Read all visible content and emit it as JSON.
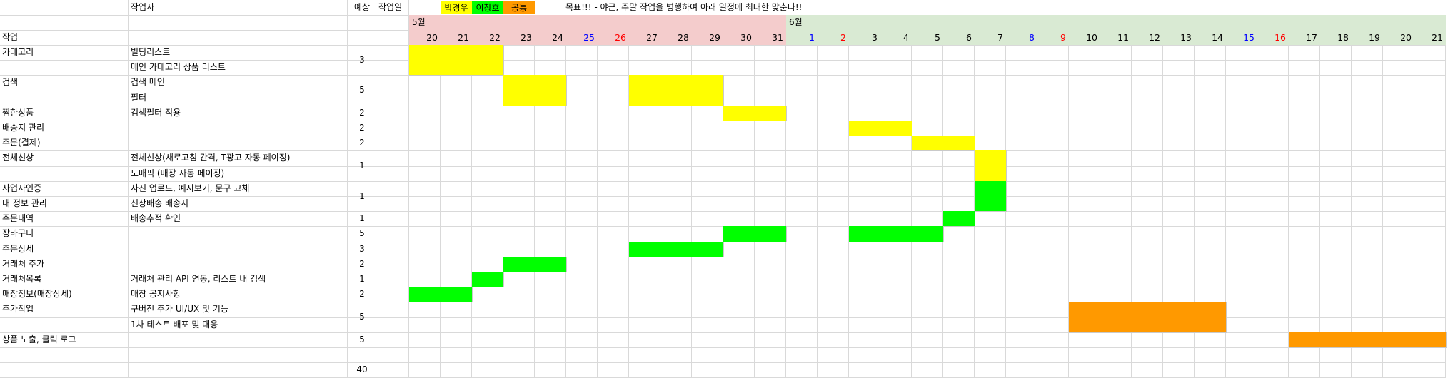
{
  "header": {
    "col_worker": "작업자",
    "col_estimate": "예상",
    "col_workday": "작업일",
    "legend": [
      {
        "label": "박경우",
        "color": "#ffff00"
      },
      {
        "label": "이창호",
        "color": "#00ff00"
      },
      {
        "label": "공통",
        "color": "#ff9900"
      }
    ],
    "goal": "목표!!! - 야근, 주말 작업을 병행하여 아래 일정에 최대한 맞춘다!!",
    "col_task": "작업"
  },
  "months": [
    {
      "label": "5월",
      "color": "#f4cccc",
      "start_day_index": 0,
      "span": 12
    },
    {
      "label": "6월",
      "color": "#d9ead3",
      "start_day_index": 12,
      "span": 21
    }
  ],
  "days": [
    {
      "label": "20",
      "color": "#000000"
    },
    {
      "label": "21",
      "color": "#000000"
    },
    {
      "label": "22",
      "color": "#000000"
    },
    {
      "label": "23",
      "color": "#000000"
    },
    {
      "label": "24",
      "color": "#000000"
    },
    {
      "label": "25",
      "color": "#0000ff"
    },
    {
      "label": "26",
      "color": "#ff0000"
    },
    {
      "label": "27",
      "color": "#000000"
    },
    {
      "label": "28",
      "color": "#000000"
    },
    {
      "label": "29",
      "color": "#000000"
    },
    {
      "label": "30",
      "color": "#000000"
    },
    {
      "label": "31",
      "color": "#000000"
    },
    {
      "label": "1",
      "color": "#0000ff"
    },
    {
      "label": "2",
      "color": "#ff0000"
    },
    {
      "label": "3",
      "color": "#000000"
    },
    {
      "label": "4",
      "color": "#000000"
    },
    {
      "label": "5",
      "color": "#000000"
    },
    {
      "label": "6",
      "color": "#000000"
    },
    {
      "label": "7",
      "color": "#000000"
    },
    {
      "label": "8",
      "color": "#0000ff"
    },
    {
      "label": "9",
      "color": "#ff0000"
    },
    {
      "label": "10",
      "color": "#000000"
    },
    {
      "label": "11",
      "color": "#000000"
    },
    {
      "label": "12",
      "color": "#000000"
    },
    {
      "label": "13",
      "color": "#000000"
    },
    {
      "label": "14",
      "color": "#000000"
    },
    {
      "label": "15",
      "color": "#0000ff"
    },
    {
      "label": "16",
      "color": "#ff0000"
    },
    {
      "label": "17",
      "color": "#000000"
    },
    {
      "label": "18",
      "color": "#000000"
    },
    {
      "label": "19",
      "color": "#000000"
    },
    {
      "label": "20",
      "color": "#000000"
    },
    {
      "label": "21",
      "color": "#000000"
    }
  ],
  "rows": [
    {
      "task": "카테고리",
      "detail": "빌딩리스트",
      "estimate": "3",
      "est_span": 2
    },
    {
      "task": "",
      "detail": "메인 카테고리 상품 리스트",
      "estimate": "",
      "est_span": 0
    },
    {
      "task": "검색",
      "detail": "검색 메인",
      "estimate": "5",
      "est_span": 2
    },
    {
      "task": "",
      "detail": "필터",
      "estimate": "",
      "est_span": 0
    },
    {
      "task": "찜한상품",
      "detail": "검색필터 적용",
      "estimate": "2",
      "est_span": 1
    },
    {
      "task": "배송지 관리",
      "detail": "",
      "estimate": "2",
      "est_span": 1
    },
    {
      "task": "주문(결제)",
      "detail": "",
      "estimate": "2",
      "est_span": 1
    },
    {
      "task": "전체신상",
      "detail": "전체신상(새로고침 간격, T광고 자동 페이징)",
      "estimate": "1",
      "est_span": 2
    },
    {
      "task": "",
      "detail": "도매픽 (매장 자동 페이징)",
      "estimate": "",
      "est_span": 0
    },
    {
      "task": "사업자인증",
      "detail": "사진 업로드, 예시보기, 문구 교체",
      "estimate": "1",
      "est_span": 2
    },
    {
      "task": "내 정보 관리",
      "detail": "신상배송 배송지",
      "estimate": "",
      "est_span": 0
    },
    {
      "task": "주문내역",
      "detail": "배송추적 확인",
      "estimate": "1",
      "est_span": 1
    },
    {
      "task": "장바구니",
      "detail": "",
      "estimate": "5",
      "est_span": 1
    },
    {
      "task": "주문상세",
      "detail": "",
      "estimate": "3",
      "est_span": 1
    },
    {
      "task": "거래처 추가",
      "detail": "",
      "estimate": "2",
      "est_span": 1
    },
    {
      "task": "거래처목록",
      "detail": "거래처 관리 API 연동, 리스트 내 검색",
      "estimate": "1",
      "est_span": 1
    },
    {
      "task": "매장정보(매장상세)",
      "detail": "매장 공지사항",
      "estimate": "2",
      "est_span": 1
    },
    {
      "task": "추가작업",
      "detail": "구버전 추가 UI/UX 및 기능",
      "estimate": "5",
      "est_span": 2
    },
    {
      "task": "",
      "detail": "1차 테스트 배포 및 대응",
      "estimate": "",
      "est_span": 0
    },
    {
      "task": "상품 노출, 클릭 로그",
      "detail": "",
      "estimate": "5",
      "est_span": 1
    },
    {
      "task": "",
      "detail": "",
      "estimate": "",
      "est_span": 1
    },
    {
      "task": "",
      "detail": "",
      "estimate": "40",
      "est_span": 1
    }
  ],
  "bars": [
    {
      "row": 0,
      "row_span": 2,
      "start": 0,
      "span": 3,
      "color": "#ffff00"
    },
    {
      "row": 2,
      "row_span": 2,
      "start": 3,
      "span": 2,
      "color": "#ffff00"
    },
    {
      "row": 2,
      "row_span": 2,
      "start": 7,
      "span": 3,
      "color": "#ffff00"
    },
    {
      "row": 4,
      "row_span": 1,
      "start": 10,
      "span": 2,
      "color": "#ffff00"
    },
    {
      "row": 5,
      "row_span": 1,
      "start": 14,
      "span": 2,
      "color": "#ffff00"
    },
    {
      "row": 6,
      "row_span": 1,
      "start": 16,
      "span": 2,
      "color": "#ffff00"
    },
    {
      "row": 7,
      "row_span": 2,
      "start": 18,
      "span": 1,
      "color": "#ffff00"
    },
    {
      "row": 9,
      "row_span": 2,
      "start": 18,
      "span": 1,
      "color": "#00ff00"
    },
    {
      "row": 11,
      "row_span": 1,
      "start": 17,
      "span": 1,
      "color": "#00ff00"
    },
    {
      "row": 12,
      "row_span": 1,
      "start": 10,
      "span": 2,
      "color": "#00ff00"
    },
    {
      "row": 12,
      "row_span": 1,
      "start": 14,
      "span": 3,
      "color": "#00ff00"
    },
    {
      "row": 13,
      "row_span": 1,
      "start": 7,
      "span": 3,
      "color": "#00ff00"
    },
    {
      "row": 14,
      "row_span": 1,
      "start": 3,
      "span": 2,
      "color": "#00ff00"
    },
    {
      "row": 15,
      "row_span": 1,
      "start": 2,
      "span": 1,
      "color": "#00ff00"
    },
    {
      "row": 16,
      "row_span": 1,
      "start": 0,
      "span": 2,
      "color": "#00ff00"
    },
    {
      "row": 17,
      "row_span": 2,
      "start": 21,
      "span": 5,
      "color": "#ff9900"
    },
    {
      "row": 19,
      "row_span": 1,
      "start": 28,
      "span": 5,
      "color": "#ff9900"
    }
  ],
  "grid_color": "#d9d9d9"
}
